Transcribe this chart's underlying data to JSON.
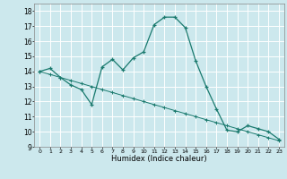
{
  "title": "",
  "xlabel": "Humidex (Indice chaleur)",
  "bg_color": "#cce8ed",
  "grid_color": "#ffffff",
  "line_color": "#1a7a6e",
  "xlim": [
    -0.5,
    23.5
  ],
  "ylim": [
    9,
    18.5
  ],
  "yticks": [
    9,
    10,
    11,
    12,
    13,
    14,
    15,
    16,
    17,
    18
  ],
  "xticks": [
    0,
    1,
    2,
    3,
    4,
    5,
    6,
    7,
    8,
    9,
    10,
    11,
    12,
    13,
    14,
    15,
    16,
    17,
    18,
    19,
    20,
    21,
    22,
    23
  ],
  "series1_x": [
    0,
    1,
    2,
    3,
    4,
    5,
    6,
    7,
    8,
    9,
    10,
    11,
    12,
    13,
    14,
    15,
    16,
    17,
    18,
    19,
    20,
    21,
    22,
    23
  ],
  "series1_y": [
    14.0,
    14.2,
    13.6,
    13.1,
    12.8,
    11.8,
    14.3,
    14.8,
    14.1,
    14.9,
    15.3,
    17.1,
    17.6,
    17.6,
    16.9,
    14.7,
    13.0,
    11.5,
    10.1,
    10.0,
    10.4,
    10.2,
    10.0,
    9.5
  ],
  "series2_x": [
    0,
    1,
    2,
    3,
    4,
    5,
    6,
    7,
    8,
    9,
    10,
    11,
    12,
    13,
    14,
    15,
    16,
    17,
    18,
    19,
    20,
    21,
    22,
    23
  ],
  "series2_y": [
    14.0,
    13.8,
    13.6,
    13.4,
    13.2,
    13.0,
    12.8,
    12.6,
    12.4,
    12.2,
    12.0,
    11.8,
    11.6,
    11.4,
    11.2,
    11.0,
    10.8,
    10.6,
    10.4,
    10.2,
    10.0,
    9.8,
    9.6,
    9.4
  ],
  "fig_width": 3.2,
  "fig_height": 2.0,
  "dpi": 100
}
